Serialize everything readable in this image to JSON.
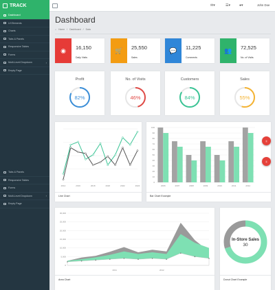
{
  "brand": {
    "name": "TRACK"
  },
  "sidebar": {
    "items": [
      {
        "label": "Dashboard",
        "active": true
      },
      {
        "label": "UI Elements"
      },
      {
        "label": "Charts"
      },
      {
        "label": "Tabs & Panels"
      },
      {
        "label": "Responsive Tables"
      },
      {
        "label": "Forms"
      },
      {
        "label": "Multi-Level Dropdown",
        "caret": true
      },
      {
        "label": "Empty Page"
      }
    ],
    "items_repeat": [
      {
        "label": "Tabs & Panels"
      },
      {
        "label": "Responsive Tables"
      },
      {
        "label": "Forms"
      },
      {
        "label": "Multi-Level Dropdown",
        "caret": true
      },
      {
        "label": "Empty Page"
      }
    ]
  },
  "topbar": {
    "user_name": "John Doe"
  },
  "page": {
    "title": "Dashboard",
    "breadcrumb": [
      "Home",
      "Dashboard",
      "Data"
    ]
  },
  "stats": [
    {
      "value": "16,150",
      "label": "Daily Visits",
      "color": "#e63b37",
      "icon": "eye-icon"
    },
    {
      "value": "25,550",
      "label": "Sales",
      "color": "#f39c12",
      "icon": "cart-icon"
    },
    {
      "value": "11,225",
      "label": "Comments",
      "color": "#2f86d8",
      "icon": "comments-icon"
    },
    {
      "value": "72,525",
      "label": "No. of Visits",
      "color": "#2fb36b",
      "icon": "users-icon"
    }
  ],
  "progress": [
    {
      "title": "Profit",
      "value": 82,
      "display": "82%",
      "color": "#3a8ed8"
    },
    {
      "title": "No. of Visits",
      "value": 46,
      "display": "46%",
      "color": "#e04a46"
    },
    {
      "title": "Customers",
      "value": 84,
      "display": "84%",
      "color": "#3ac495"
    },
    {
      "title": "Sales",
      "value": 55,
      "display": "55%",
      "color": "#f5b331"
    }
  ],
  "charts": {
    "line": {
      "caption": "Line Chart",
      "chart_data": {
        "type": "line",
        "x": [
          "2014",
          "2015",
          "2016",
          "2017",
          "2018",
          "2019",
          "2020",
          "2021",
          "2022",
          "2023",
          "2024"
        ],
        "x_ticks": [
          "2014",
          "2016",
          "2018",
          "2020",
          "2022",
          "2024"
        ],
        "series": [
          {
            "values": [
              30,
              130,
              140,
              80,
              95,
              135,
              60,
              95,
              155,
              130,
              175
            ],
            "color": "#3ac495"
          },
          {
            "values": [
              10,
              120,
              105,
              100,
              60,
              70,
              90,
              60,
              120,
              60,
              110
            ],
            "color": "#555555"
          }
        ],
        "ylim": [
          0,
          185
        ]
      }
    },
    "bar": {
      "caption": "Bar Chart Example",
      "chart_data": {
        "type": "bar",
        "categories": [
          "2006",
          "2007",
          "2008",
          "2009",
          "2010",
          "2011",
          "2012"
        ],
        "series": [
          {
            "values": [
              100,
              75,
              50,
              75,
              50,
              75,
              100
            ],
            "color": "#a3a3a3"
          },
          {
            "values": [
              90,
              65,
              40,
              65,
              40,
              65,
              90
            ],
            "color": "#7ee0b3"
          }
        ],
        "y_ticks": [
          "0",
          "10",
          "20",
          "30",
          "40",
          "50",
          "60",
          "70",
          "80",
          "90",
          "100"
        ],
        "ylim": [
          0,
          100
        ]
      }
    },
    "area": {
      "caption": "Area Chart",
      "chart_data": {
        "type": "area",
        "x": [
          0,
          1,
          2,
          3,
          4,
          5,
          6,
          7,
          8,
          9,
          10
        ],
        "x_ticks": [
          "2011",
          "2012"
        ],
        "y_ticks": [
          "0",
          "5,000",
          "10,000",
          "15,000",
          "20,000",
          "25,000",
          "30,000"
        ],
        "series": [
          {
            "values": [
              2600,
              4500,
              5500,
              7800,
              10500,
              7500,
              9000,
              8000,
              24500,
              14500,
              8000
            ],
            "color": "#9a9a9a"
          },
          {
            "values": [
              2600,
              3500,
              4600,
              6000,
              8000,
              6500,
              7500,
              6500,
              18000,
              13000,
              10000
            ],
            "color": "#7ee0b3"
          },
          {
            "values": [
              2000,
              2500,
              3000,
              3500,
              4000,
              3500,
              4000,
              3500,
              7000,
              5000,
              4000
            ],
            "color": "#ffffff"
          }
        ],
        "ylim": [
          0,
          30000
        ]
      }
    },
    "donut": {
      "caption": "Donut Chart Example",
      "chart_data": {
        "type": "pie",
        "label": "In-Store Sales",
        "value": "30",
        "slices": [
          {
            "value": 70,
            "color": "#7ee0b3"
          },
          {
            "value": 30,
            "color": "#9a9a9a"
          }
        ]
      }
    }
  }
}
